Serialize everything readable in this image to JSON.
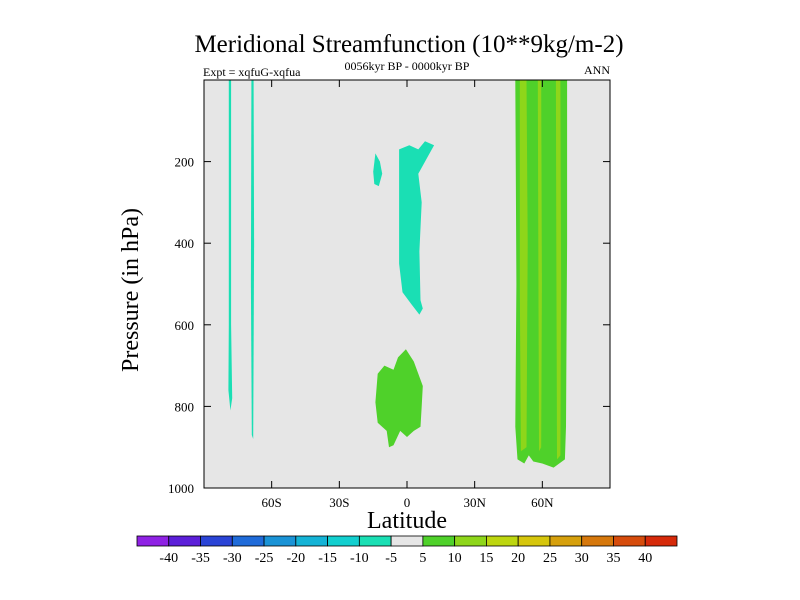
{
  "chart_data": {
    "type": "contour",
    "title": "Meridional Streamfunction (10**9kg/m-2)",
    "left_label": "Expt = xqfuG-xqfua",
    "center_label": "0056kyr BP - 0000kyr BP",
    "right_label": "ANN",
    "xlabel": "Latitude",
    "ylabel": "Pressure (in hPa)",
    "xlim": [
      -90,
      90
    ],
    "ylim": [
      1000,
      0
    ],
    "x_ticks": [
      {
        "value": -60,
        "label": "60S"
      },
      {
        "value": -30,
        "label": "30S"
      },
      {
        "value": 0,
        "label": "0"
      },
      {
        "value": 30,
        "label": "30N"
      },
      {
        "value": 60,
        "label": "60N"
      }
    ],
    "y_ticks": [
      {
        "value": 200,
        "label": "200"
      },
      {
        "value": 400,
        "label": "400"
      },
      {
        "value": 600,
        "label": "600"
      },
      {
        "value": 800,
        "label": "800"
      },
      {
        "value": 1000,
        "label": "1000"
      }
    ],
    "background_color": "#e6e6e6",
    "colorbar": {
      "levels": [
        "-40",
        "-35",
        "-30",
        "-25",
        "-20",
        "-15",
        "-10",
        "-5",
        "5",
        "10",
        "15",
        "20",
        "25",
        "30",
        "35",
        "40"
      ],
      "colors": [
        "#8f22e4",
        "#5c1fd9",
        "#2a44d6",
        "#1f6bd9",
        "#1a93d6",
        "#14b3d6",
        "#12cfcf",
        "#1adfb4",
        "#e6e6e6",
        "#4fd12a",
        "#8ed61a",
        "#bdd60f",
        "#d6c60c",
        "#d6a00c",
        "#d6780c",
        "#d64c0c",
        "#d62a0a"
      ]
    },
    "regions": [
      {
        "name": "band-a",
        "level": "-10",
        "color": "#1adfb4",
        "points": [
          [
            -79,
            0
          ],
          [
            -78,
            0
          ],
          [
            -78,
            600
          ],
          [
            -77.5,
            780
          ],
          [
            -78.3,
            810
          ],
          [
            -79.2,
            760
          ],
          [
            -79,
            600
          ]
        ]
      },
      {
        "name": "band-b",
        "level": "-10",
        "color": "#1adfb4",
        "points": [
          [
            -69,
            0
          ],
          [
            -68,
            0
          ],
          [
            -67.8,
            400
          ],
          [
            -68.2,
            880
          ],
          [
            -68.8,
            870
          ],
          [
            -69.2,
            500
          ]
        ]
      },
      {
        "name": "blob-c",
        "level": "-10",
        "color": "#1adfb4",
        "points": [
          [
            -14,
            180
          ],
          [
            -12,
            200
          ],
          [
            -11,
            230
          ],
          [
            -12.5,
            260
          ],
          [
            -14.5,
            255
          ],
          [
            -15,
            225
          ]
        ]
      },
      {
        "name": "region-d",
        "level": "-10",
        "color": "#1adfb4",
        "points": [
          [
            -3.5,
            170
          ],
          [
            1,
            160
          ],
          [
            5,
            170
          ],
          [
            8,
            150
          ],
          [
            12,
            160
          ],
          [
            9,
            190
          ],
          [
            5,
            230
          ],
          [
            6.5,
            300
          ],
          [
            5.5,
            420
          ],
          [
            6,
            540
          ],
          [
            7,
            560
          ],
          [
            5.5,
            575
          ],
          [
            2,
            550
          ],
          [
            -2,
            520
          ],
          [
            -3.5,
            450
          ],
          [
            -3.5,
            300
          ]
        ]
      },
      {
        "name": "region-e",
        "level": "5",
        "color": "#4fd12a",
        "points": [
          [
            -13,
            720
          ],
          [
            -10,
            700
          ],
          [
            -6,
            710
          ],
          [
            -4,
            680
          ],
          [
            -0.5,
            660
          ],
          [
            3,
            690
          ],
          [
            7,
            750
          ],
          [
            6.5,
            800
          ],
          [
            6,
            850
          ],
          [
            3,
            860
          ],
          [
            0,
            875
          ],
          [
            -3,
            860
          ],
          [
            -6,
            895
          ],
          [
            -8,
            900
          ],
          [
            -9,
            860
          ],
          [
            -13,
            840
          ],
          [
            -14,
            790
          ]
        ]
      },
      {
        "name": "region-f",
        "level": "5",
        "color": "#4fd12a",
        "points": [
          [
            48,
            0
          ],
          [
            71,
            0
          ],
          [
            71,
            400
          ],
          [
            70.5,
            850
          ],
          [
            70,
            930
          ],
          [
            65,
            950
          ],
          [
            60,
            940
          ],
          [
            56,
            935
          ],
          [
            54,
            920
          ],
          [
            52,
            940
          ],
          [
            49,
            930
          ],
          [
            48,
            850
          ],
          [
            48.5,
            500
          ]
        ]
      },
      {
        "name": "band-g",
        "level": "10",
        "color": "#8ed61a",
        "points": [
          [
            50,
            0
          ],
          [
            53,
            0
          ],
          [
            53.5,
            400
          ],
          [
            53,
            900
          ],
          [
            50.5,
            910
          ],
          [
            50,
            500
          ]
        ]
      },
      {
        "name": "band-h",
        "level": "10",
        "color": "#8ed61a",
        "points": [
          [
            58,
            0
          ],
          [
            59.5,
            0
          ],
          [
            59.8,
            500
          ],
          [
            59.5,
            900
          ],
          [
            58.5,
            910
          ],
          [
            58.2,
            400
          ]
        ]
      },
      {
        "name": "band-i",
        "level": "10",
        "color": "#8ed61a",
        "points": [
          [
            66,
            0
          ],
          [
            68,
            0
          ],
          [
            68.3,
            500
          ],
          [
            68,
            920
          ],
          [
            66.5,
            930
          ],
          [
            66.2,
            400
          ]
        ]
      }
    ]
  }
}
